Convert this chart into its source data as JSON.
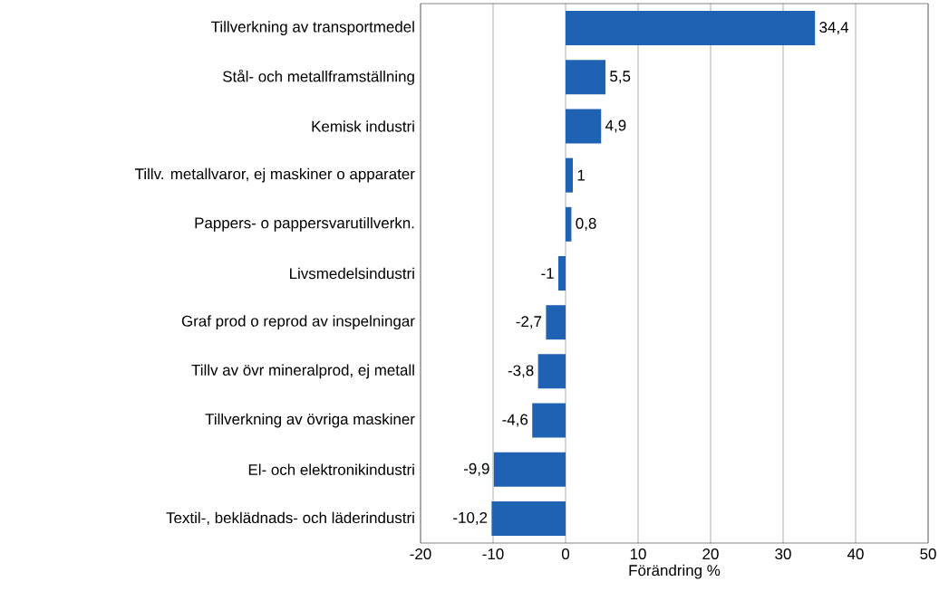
{
  "chart_data": {
    "type": "bar",
    "orientation": "horizontal",
    "xlabel": "Förändring %",
    "categories": [
      "Tillverkning av transportmedel",
      "Stål- och metallframställning",
      "Kemisk industri",
      "Tillv. metallvaror, ej maskiner o apparater",
      "Pappers- o pappersvarutillverkn.",
      "Livsmedelsindustri",
      "Graf prod o reprod av inspelningar",
      "Tillv av övr mineralprod, ej metall",
      "Tillverkning av övriga maskiner",
      "El- och elektronikindustri",
      "Textil-, beklädnads- och läderindustri"
    ],
    "values": [
      34.4,
      5.5,
      4.9,
      1,
      0.8,
      -1,
      -2.7,
      -3.8,
      -4.6,
      -9.9,
      -10.2
    ],
    "value_labels": [
      "34,4",
      "5,5",
      "4,9",
      "1",
      "0,8",
      "-1",
      "-2,7",
      "-3,8",
      "-4,6",
      "-9,9",
      "-10,2"
    ],
    "color": "#1f62b4",
    "xlim": [
      -20,
      50
    ],
    "xticks": [
      -20,
      -10,
      0,
      10,
      20,
      30,
      40,
      50
    ],
    "grid": "x"
  }
}
